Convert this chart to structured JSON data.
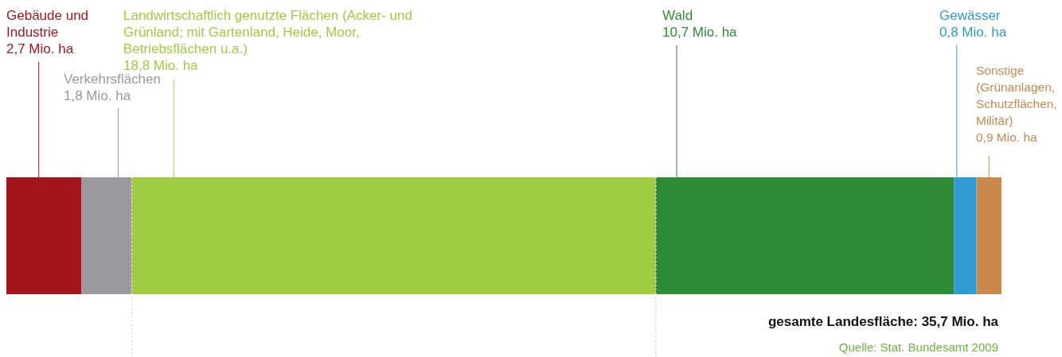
{
  "chart_data": {
    "type": "bar",
    "orientation": "horizontal",
    "stacked": true,
    "categories": [
      null
    ],
    "series": [
      {
        "name": "Gebäude und Industrie",
        "color": "#a3161c",
        "values": [
          2.7
        ],
        "value_labels": [
          "2,7 Mio. ha"
        ]
      },
      {
        "name": "Verkehrsflächen",
        "color": "#9a9a9c",
        "values": [
          1.8
        ],
        "value_labels": [
          "1,8 Mio. ha"
        ]
      },
      {
        "name": "Landwirtschaftlich genutzte Flächen (Acker- und Grünland; mit Gartenland, Heide, Moor, Betriebsflächen u.a.)",
        "color": "#9fcb42",
        "values": [
          18.8
        ],
        "value_labels": [
          "18,8 Mio. ha"
        ]
      },
      {
        "name": "Wald",
        "color": "#2f8a37",
        "values": [
          10.7
        ],
        "value_labels": [
          "10,7 Mio. ha"
        ]
      },
      {
        "name": "Gewässer",
        "color": "#2f9bd2",
        "values": [
          0.8
        ],
        "value_labels": [
          "0,8 Mio. ha"
        ]
      },
      {
        "name": "Sonstige (Grünanlagen, Schutzflächen, Militär)",
        "color": "#c9884d",
        "values": [
          0.9
        ],
        "value_labels": [
          "0,9 Mio. ha"
        ]
      }
    ],
    "ref_lines": [
      {
        "axis": "x",
        "value": 4.5,
        "color": "#e3ddb0",
        "line_style": "dotted"
      },
      {
        "axis": "x",
        "value": 23.3,
        "color": "#e3ddb0",
        "line_style": "dotted"
      }
    ],
    "annotations": [
      "gesamte Landesfläche: 35,7 Mio. ha",
      "Quelle: Stat. Bundesamt 2009"
    ]
  }
}
